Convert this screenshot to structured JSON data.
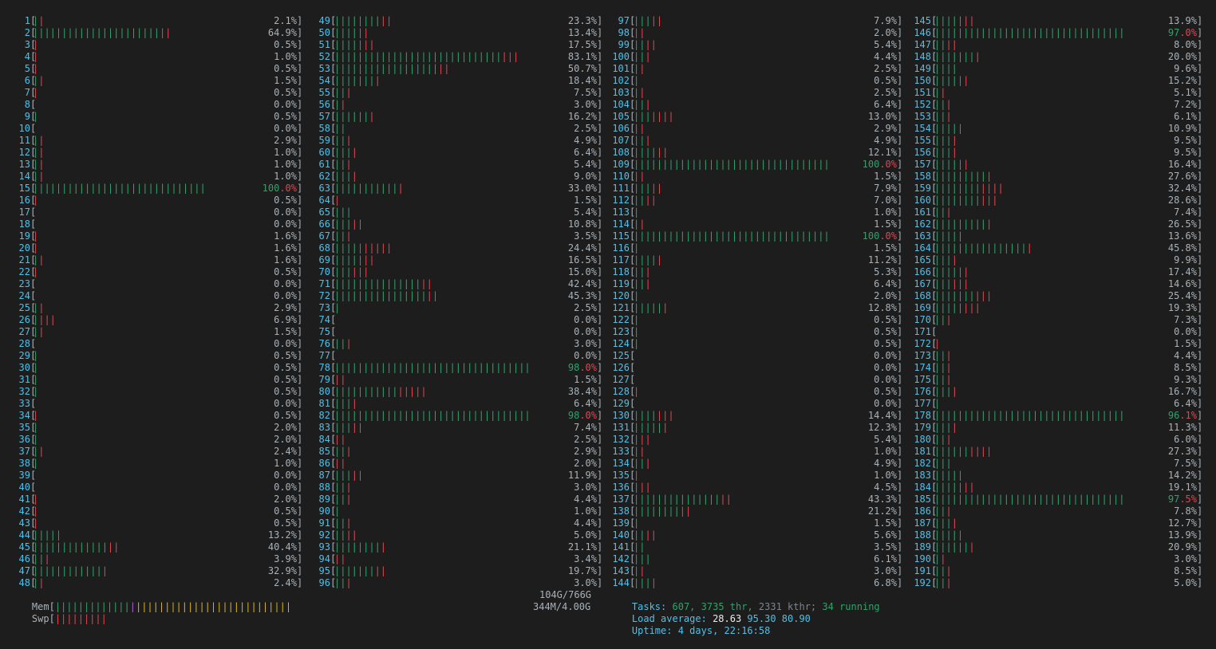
{
  "cpus": [
    {
      "id": "1",
      "g": 1,
      "r": 1,
      "pct": "2.1%"
    },
    {
      "id": "2",
      "g": 22,
      "r": 2,
      "pct": "64.9%"
    },
    {
      "id": "3",
      "g": 0,
      "r": 1,
      "pct": "0.5%"
    },
    {
      "id": "4",
      "g": 0,
      "r": 1,
      "pct": "1.0%"
    },
    {
      "id": "5",
      "g": 0,
      "r": 1,
      "pct": "0.5%"
    },
    {
      "id": "6",
      "g": 1,
      "r": 1,
      "pct": "1.5%"
    },
    {
      "id": "7",
      "g": 0,
      "r": 1,
      "pct": "0.5%"
    },
    {
      "id": "8",
      "g": 0,
      "r": 0,
      "pct": "0.0%"
    },
    {
      "id": "9",
      "g": 1,
      "r": 0,
      "pct": "0.5%"
    },
    {
      "id": "10",
      "g": 0,
      "r": 0,
      "pct": "0.0%"
    },
    {
      "id": "11",
      "g": 1,
      "r": 1,
      "pct": "2.9%"
    },
    {
      "id": "12",
      "g": 1,
      "r": 1,
      "pct": "1.0%"
    },
    {
      "id": "13",
      "g": 1,
      "r": 1,
      "pct": "1.0%"
    },
    {
      "id": "14",
      "g": 1,
      "r": 1,
      "pct": "1.0%"
    },
    {
      "id": "15",
      "g": 30,
      "r": 0,
      "pct": "100.0%",
      "full": true
    },
    {
      "id": "16",
      "g": 0,
      "r": 1,
      "pct": "0.5%"
    },
    {
      "id": "17",
      "g": 0,
      "r": 0,
      "pct": "0.0%"
    },
    {
      "id": "18",
      "g": 0,
      "r": 0,
      "pct": "0.0%"
    },
    {
      "id": "19",
      "g": 0,
      "r": 1,
      "pct": "1.6%"
    },
    {
      "id": "20",
      "g": 0,
      "r": 1,
      "pct": "1.6%"
    },
    {
      "id": "21",
      "g": 1,
      "r": 1,
      "pct": "1.6%"
    },
    {
      "id": "22",
      "g": 0,
      "r": 1,
      "pct": "0.5%"
    },
    {
      "id": "23",
      "g": 0,
      "r": 0,
      "pct": "0.0%"
    },
    {
      "id": "24",
      "g": 0,
      "r": 0,
      "pct": "0.0%"
    },
    {
      "id": "25",
      "g": 1,
      "r": 1,
      "pct": "2.9%"
    },
    {
      "id": "26",
      "g": 1,
      "r": 3,
      "pct": "6.9%"
    },
    {
      "id": "27",
      "g": 1,
      "r": 1,
      "pct": "1.5%"
    },
    {
      "id": "28",
      "g": 0,
      "r": 0,
      "pct": "0.0%"
    },
    {
      "id": "29",
      "g": 1,
      "r": 0,
      "pct": "0.5%"
    },
    {
      "id": "30",
      "g": 1,
      "r": 0,
      "pct": "0.5%"
    },
    {
      "id": "31",
      "g": 1,
      "r": 0,
      "pct": "0.5%"
    },
    {
      "id": "32",
      "g": 1,
      "r": 0,
      "pct": "0.5%"
    },
    {
      "id": "33",
      "g": 0,
      "r": 0,
      "pct": "0.0%"
    },
    {
      "id": "34",
      "g": 0,
      "r": 1,
      "pct": "0.5%"
    },
    {
      "id": "35",
      "g": 1,
      "r": 0,
      "pct": "2.0%"
    },
    {
      "id": "36",
      "g": 1,
      "r": 0,
      "pct": "2.0%"
    },
    {
      "id": "37",
      "g": 1,
      "r": 1,
      "pct": "2.4%"
    },
    {
      "id": "38",
      "g": 1,
      "r": 0,
      "pct": "1.0%"
    },
    {
      "id": "39",
      "g": 0,
      "r": 0,
      "pct": "0.0%"
    },
    {
      "id": "40",
      "g": 0,
      "r": 0,
      "pct": "0.0%"
    },
    {
      "id": "41",
      "g": 0,
      "r": 1,
      "pct": "2.0%"
    },
    {
      "id": "42",
      "g": 0,
      "r": 1,
      "pct": "0.5%"
    },
    {
      "id": "43",
      "g": 0,
      "r": 1,
      "pct": "0.5%"
    },
    {
      "id": "44",
      "g": 4,
      "r": 1,
      "pct": "13.2%"
    },
    {
      "id": "45",
      "g": 13,
      "r": 2,
      "pct": "40.4%"
    },
    {
      "id": "46",
      "g": 2,
      "r": 1,
      "pct": "3.9%"
    },
    {
      "id": "47",
      "g": 12,
      "r": 1,
      "pct": "32.9%"
    },
    {
      "id": "48",
      "g": 1,
      "r": 1,
      "pct": "2.4%"
    },
    {
      "id": "49",
      "g": 8,
      "r": 2,
      "pct": "23.3%"
    },
    {
      "id": "50",
      "g": 5,
      "r": 1,
      "pct": "13.4%"
    },
    {
      "id": "51",
      "g": 4,
      "r": 3,
      "pct": "17.5%"
    },
    {
      "id": "52",
      "g": 29,
      "r": 3,
      "pct": "83.1%"
    },
    {
      "id": "53",
      "g": 18,
      "r": 2,
      "pct": "50.7%"
    },
    {
      "id": "54",
      "g": 7,
      "r": 1,
      "pct": "18.4%"
    },
    {
      "id": "55",
      "g": 2,
      "r": 1,
      "pct": "7.5%"
    },
    {
      "id": "56",
      "g": 1,
      "r": 1,
      "pct": "3.0%"
    },
    {
      "id": "57",
      "g": 6,
      "r": 1,
      "pct": "16.2%"
    },
    {
      "id": "58",
      "g": 2,
      "r": 0,
      "pct": "2.5%"
    },
    {
      "id": "59",
      "g": 2,
      "r": 1,
      "pct": "4.9%"
    },
    {
      "id": "60",
      "g": 3,
      "r": 1,
      "pct": "6.4%"
    },
    {
      "id": "61",
      "g": 2,
      "r": 1,
      "pct": "5.4%"
    },
    {
      "id": "62",
      "g": 3,
      "r": 1,
      "pct": "9.0%"
    },
    {
      "id": "63",
      "g": 11,
      "r": 1,
      "pct": "33.0%"
    },
    {
      "id": "64",
      "g": 0,
      "r": 1,
      "pct": "1.5%"
    },
    {
      "id": "65",
      "g": 3,
      "r": 0,
      "pct": "5.4%"
    },
    {
      "id": "66",
      "g": 3,
      "r": 2,
      "pct": "10.8%"
    },
    {
      "id": "67",
      "g": 2,
      "r": 1,
      "pct": "3.5%"
    },
    {
      "id": "68",
      "g": 4,
      "r": 6,
      "pct": "24.4%"
    },
    {
      "id": "69",
      "g": 5,
      "r": 2,
      "pct": "16.5%"
    },
    {
      "id": "70",
      "g": 3,
      "r": 3,
      "pct": "15.0%"
    },
    {
      "id": "71",
      "g": 15,
      "r": 2,
      "pct": "42.4%"
    },
    {
      "id": "72",
      "g": 16,
      "r": 2,
      "pct": "45.3%"
    },
    {
      "id": "73",
      "g": 1,
      "r": 0,
      "pct": "2.5%"
    },
    {
      "id": "74",
      "g": 0,
      "r": 0,
      "pct": "0.0%"
    },
    {
      "id": "75",
      "g": 0,
      "r": 0,
      "pct": "0.0%"
    },
    {
      "id": "76",
      "g": 2,
      "r": 1,
      "pct": "3.0%"
    },
    {
      "id": "77",
      "g": 0,
      "r": 0,
      "pct": "0.0%"
    },
    {
      "id": "78",
      "g": 34,
      "r": 0,
      "pct": "98.0%",
      "full": true
    },
    {
      "id": "79",
      "g": 0,
      "r": 2,
      "pct": "1.5%"
    },
    {
      "id": "80",
      "g": 11,
      "r": 5,
      "pct": "38.4%"
    },
    {
      "id": "81",
      "g": 3,
      "r": 1,
      "pct": "6.4%"
    },
    {
      "id": "82",
      "g": 34,
      "r": 0,
      "pct": "98.0%",
      "full": true
    },
    {
      "id": "83",
      "g": 3,
      "r": 2,
      "pct": "7.4%"
    },
    {
      "id": "84",
      "g": 0,
      "r": 2,
      "pct": "2.5%"
    },
    {
      "id": "85",
      "g": 2,
      "r": 1,
      "pct": "2.9%"
    },
    {
      "id": "86",
      "g": 0,
      "r": 2,
      "pct": "2.0%"
    },
    {
      "id": "87",
      "g": 3,
      "r": 2,
      "pct": "11.9%"
    },
    {
      "id": "88",
      "g": 2,
      "r": 1,
      "pct": "3.0%"
    },
    {
      "id": "89",
      "g": 2,
      "r": 1,
      "pct": "4.4%"
    },
    {
      "id": "90",
      "g": 1,
      "r": 0,
      "pct": "1.0%"
    },
    {
      "id": "91",
      "g": 2,
      "r": 1,
      "pct": "4.4%"
    },
    {
      "id": "92",
      "g": 2,
      "r": 2,
      "pct": "5.0%"
    },
    {
      "id": "93",
      "g": 8,
      "r": 1,
      "pct": "21.1%"
    },
    {
      "id": "94",
      "g": 0,
      "r": 2,
      "pct": "3.4%"
    },
    {
      "id": "95",
      "g": 7,
      "r": 2,
      "pct": "19.7%"
    },
    {
      "id": "96",
      "g": 2,
      "r": 1,
      "pct": "3.0%"
    },
    {
      "id": "97",
      "g": 3,
      "r": 2,
      "pct": "7.9%"
    },
    {
      "id": "98",
      "g": 0,
      "r": 2,
      "pct": "2.0%"
    },
    {
      "id": "99",
      "g": 2,
      "r": 2,
      "pct": "5.4%"
    },
    {
      "id": "100",
      "g": 2,
      "r": 1,
      "pct": "4.4%"
    },
    {
      "id": "101",
      "g": 1,
      "r": 1,
      "pct": "2.5%"
    },
    {
      "id": "102",
      "g": 1,
      "r": 0,
      "pct": "0.5%"
    },
    {
      "id": "103",
      "g": 1,
      "r": 1,
      "pct": "2.5%"
    },
    {
      "id": "104",
      "g": 2,
      "r": 1,
      "pct": "6.4%"
    },
    {
      "id": "105",
      "g": 3,
      "r": 4,
      "pct": "13.0%"
    },
    {
      "id": "106",
      "g": 0,
      "r": 2,
      "pct": "2.9%"
    },
    {
      "id": "107",
      "g": 2,
      "r": 1,
      "pct": "4.9%"
    },
    {
      "id": "108",
      "g": 4,
      "r": 2,
      "pct": "12.1%"
    },
    {
      "id": "109",
      "g": 34,
      "r": 0,
      "pct": "100.0%",
      "full": true
    },
    {
      "id": "110",
      "g": 0,
      "r": 2,
      "pct": "1.5%"
    },
    {
      "id": "111",
      "g": 3,
      "r": 2,
      "pct": "7.9%"
    },
    {
      "id": "112",
      "g": 2,
      "r": 2,
      "pct": "7.0%"
    },
    {
      "id": "113",
      "g": 1,
      "r": 0,
      "pct": "1.0%"
    },
    {
      "id": "114",
      "g": 1,
      "r": 1,
      "pct": "1.5%"
    },
    {
      "id": "115",
      "g": 34,
      "r": 0,
      "pct": "100.0%",
      "full": true
    },
    {
      "id": "116",
      "g": 1,
      "r": 0,
      "pct": "1.5%"
    },
    {
      "id": "117",
      "g": 4,
      "r": 1,
      "pct": "11.2%"
    },
    {
      "id": "118",
      "g": 2,
      "r": 1,
      "pct": "5.3%"
    },
    {
      "id": "119",
      "g": 2,
      "r": 1,
      "pct": "6.4%"
    },
    {
      "id": "120",
      "g": 1,
      "r": 0,
      "pct": "2.0%"
    },
    {
      "id": "121",
      "g": 5,
      "r": 1,
      "pct": "12.8%"
    },
    {
      "id": "122",
      "g": 1,
      "r": 0,
      "pct": "0.5%"
    },
    {
      "id": "123",
      "g": 1,
      "r": 0,
      "pct": "0.5%"
    },
    {
      "id": "124",
      "g": 1,
      "r": 0,
      "pct": "0.5%"
    },
    {
      "id": "125",
      "g": 0,
      "r": 0,
      "pct": "0.0%"
    },
    {
      "id": "126",
      "g": 0,
      "r": 0,
      "pct": "0.0%"
    },
    {
      "id": "127",
      "g": 0,
      "r": 0,
      "pct": "0.0%"
    },
    {
      "id": "128",
      "g": 0,
      "r": 1,
      "pct": "0.5%"
    },
    {
      "id": "129",
      "g": 0,
      "r": 0,
      "pct": "0.0%"
    },
    {
      "id": "130",
      "g": 4,
      "r": 3,
      "pct": "14.4%"
    },
    {
      "id": "131",
      "g": 5,
      "r": 1,
      "pct": "12.3%"
    },
    {
      "id": "132",
      "g": 1,
      "r": 2,
      "pct": "5.4%"
    },
    {
      "id": "133",
      "g": 1,
      "r": 1,
      "pct": "1.0%"
    },
    {
      "id": "134",
      "g": 2,
      "r": 1,
      "pct": "4.9%"
    },
    {
      "id": "135",
      "g": 0,
      "r": 1,
      "pct": "1.0%"
    },
    {
      "id": "136",
      "g": 1,
      "r": 2,
      "pct": "4.5%"
    },
    {
      "id": "137",
      "g": 15,
      "r": 2,
      "pct": "43.3%"
    },
    {
      "id": "138",
      "g": 8,
      "r": 2,
      "pct": "21.2%"
    },
    {
      "id": "139",
      "g": 1,
      "r": 0,
      "pct": "1.5%"
    },
    {
      "id": "140",
      "g": 2,
      "r": 2,
      "pct": "5.6%"
    },
    {
      "id": "141",
      "g": 2,
      "r": 0,
      "pct": "3.5%"
    },
    {
      "id": "142",
      "g": 3,
      "r": 0,
      "pct": "6.1%"
    },
    {
      "id": "143",
      "g": 1,
      "r": 1,
      "pct": "3.0%"
    },
    {
      "id": "144",
      "g": 3,
      "r": 1,
      "pct": "6.8%"
    },
    {
      "id": "145",
      "g": 5,
      "r": 2,
      "pct": "13.9%"
    },
    {
      "id": "146",
      "g": 33,
      "r": 0,
      "pct": "97.0%",
      "full": true
    },
    {
      "id": "147",
      "g": 2,
      "r": 2,
      "pct": "8.0%"
    },
    {
      "id": "148",
      "g": 7,
      "r": 1,
      "pct": "20.0%"
    },
    {
      "id": "149",
      "g": 4,
      "r": 0,
      "pct": "9.6%"
    },
    {
      "id": "150",
      "g": 4,
      "r": 2,
      "pct": "15.2%"
    },
    {
      "id": "151",
      "g": 1,
      "r": 1,
      "pct": "5.1%"
    },
    {
      "id": "152",
      "g": 2,
      "r": 1,
      "pct": "7.2%"
    },
    {
      "id": "153",
      "g": 2,
      "r": 1,
      "pct": "6.1%"
    },
    {
      "id": "154",
      "g": 4,
      "r": 1,
      "pct": "10.9%"
    },
    {
      "id": "155",
      "g": 3,
      "r": 1,
      "pct": "9.5%"
    },
    {
      "id": "156",
      "g": 3,
      "r": 1,
      "pct": "9.5%"
    },
    {
      "id": "157",
      "g": 5,
      "r": 1,
      "pct": "16.4%"
    },
    {
      "id": "158",
      "g": 9,
      "r": 1,
      "pct": "27.6%"
    },
    {
      "id": "159",
      "g": 8,
      "r": 4,
      "pct": "32.4%"
    },
    {
      "id": "160",
      "g": 8,
      "r": 3,
      "pct": "28.6%"
    },
    {
      "id": "161",
      "g": 2,
      "r": 1,
      "pct": "7.4%"
    },
    {
      "id": "162",
      "g": 9,
      "r": 1,
      "pct": "26.5%"
    },
    {
      "id": "163",
      "g": 5,
      "r": 0,
      "pct": "13.6%"
    },
    {
      "id": "164",
      "g": 16,
      "r": 1,
      "pct": "45.8%"
    },
    {
      "id": "165",
      "g": 3,
      "r": 1,
      "pct": "9.9%"
    },
    {
      "id": "166",
      "g": 5,
      "r": 1,
      "pct": "17.4%"
    },
    {
      "id": "167",
      "g": 3,
      "r": 3,
      "pct": "14.6%"
    },
    {
      "id": "168",
      "g": 7,
      "r": 3,
      "pct": "25.4%"
    },
    {
      "id": "169",
      "g": 5,
      "r": 3,
      "pct": "19.3%"
    },
    {
      "id": "170",
      "g": 2,
      "r": 1,
      "pct": "7.3%"
    },
    {
      "id": "171",
      "g": 0,
      "r": 0,
      "pct": "0.0%"
    },
    {
      "id": "172",
      "g": 0,
      "r": 1,
      "pct": "1.5%"
    },
    {
      "id": "173",
      "g": 2,
      "r": 1,
      "pct": "4.4%"
    },
    {
      "id": "174",
      "g": 2,
      "r": 1,
      "pct": "8.5%"
    },
    {
      "id": "175",
      "g": 2,
      "r": 1,
      "pct": "9.3%"
    },
    {
      "id": "176",
      "g": 3,
      "r": 1,
      "pct": "16.7%"
    },
    {
      "id": "177",
      "g": 1,
      "r": 0,
      "pct": "6.4%"
    },
    {
      "id": "178",
      "g": 33,
      "r": 0,
      "pct": "96.1%",
      "full": true
    },
    {
      "id": "179",
      "g": 3,
      "r": 1,
      "pct": "11.3%"
    },
    {
      "id": "180",
      "g": 2,
      "r": 1,
      "pct": "6.0%"
    },
    {
      "id": "181",
      "g": 6,
      "r": 4,
      "pct": "27.3%"
    },
    {
      "id": "182",
      "g": 3,
      "r": 0,
      "pct": "7.5%"
    },
    {
      "id": "183",
      "g": 4,
      "r": 1,
      "pct": "14.2%"
    },
    {
      "id": "184",
      "g": 5,
      "r": 2,
      "pct": "19.1%"
    },
    {
      "id": "185",
      "g": 33,
      "r": 0,
      "pct": "97.5%",
      "full": true
    },
    {
      "id": "186",
      "g": 2,
      "r": 1,
      "pct": "7.8%"
    },
    {
      "id": "187",
      "g": 3,
      "r": 1,
      "pct": "12.7%"
    },
    {
      "id": "188",
      "g": 4,
      "r": 1,
      "pct": "13.9%"
    },
    {
      "id": "189",
      "g": 6,
      "r": 1,
      "pct": "20.9%"
    },
    {
      "id": "190",
      "g": 1,
      "r": 1,
      "pct": "3.0%"
    },
    {
      "id": "191",
      "g": 2,
      "r": 1,
      "pct": "8.5%"
    },
    {
      "id": "192",
      "g": 2,
      "r": 1,
      "pct": "5.0%"
    }
  ],
  "mem": {
    "label": "Mem",
    "green": 13,
    "magenta": 1,
    "yellow": 27,
    "value": "104G/766G"
  },
  "swp": {
    "label": "Swp",
    "red": 9,
    "value": "344M/4.00G"
  },
  "tasks": {
    "label": "Tasks:",
    "count": "607,",
    "thr": "3735 thr,",
    "kthr": "2331 kthr;",
    "running": "34 running"
  },
  "load": {
    "label": "Load average:",
    "v1": "28.63",
    "v5": "95.30",
    "v15": "80.90"
  },
  "uptime": {
    "label": "Uptime:",
    "value": "4 days, 22:16:58"
  },
  "colors": {
    "bg": "#1d1d1d",
    "cyan": "#4fc1e9",
    "green": "#2ea36b",
    "red": "#e0464f",
    "yellow": "#d4b21f",
    "magenta": "#b05cd8",
    "text": "#a9b2b9"
  }
}
